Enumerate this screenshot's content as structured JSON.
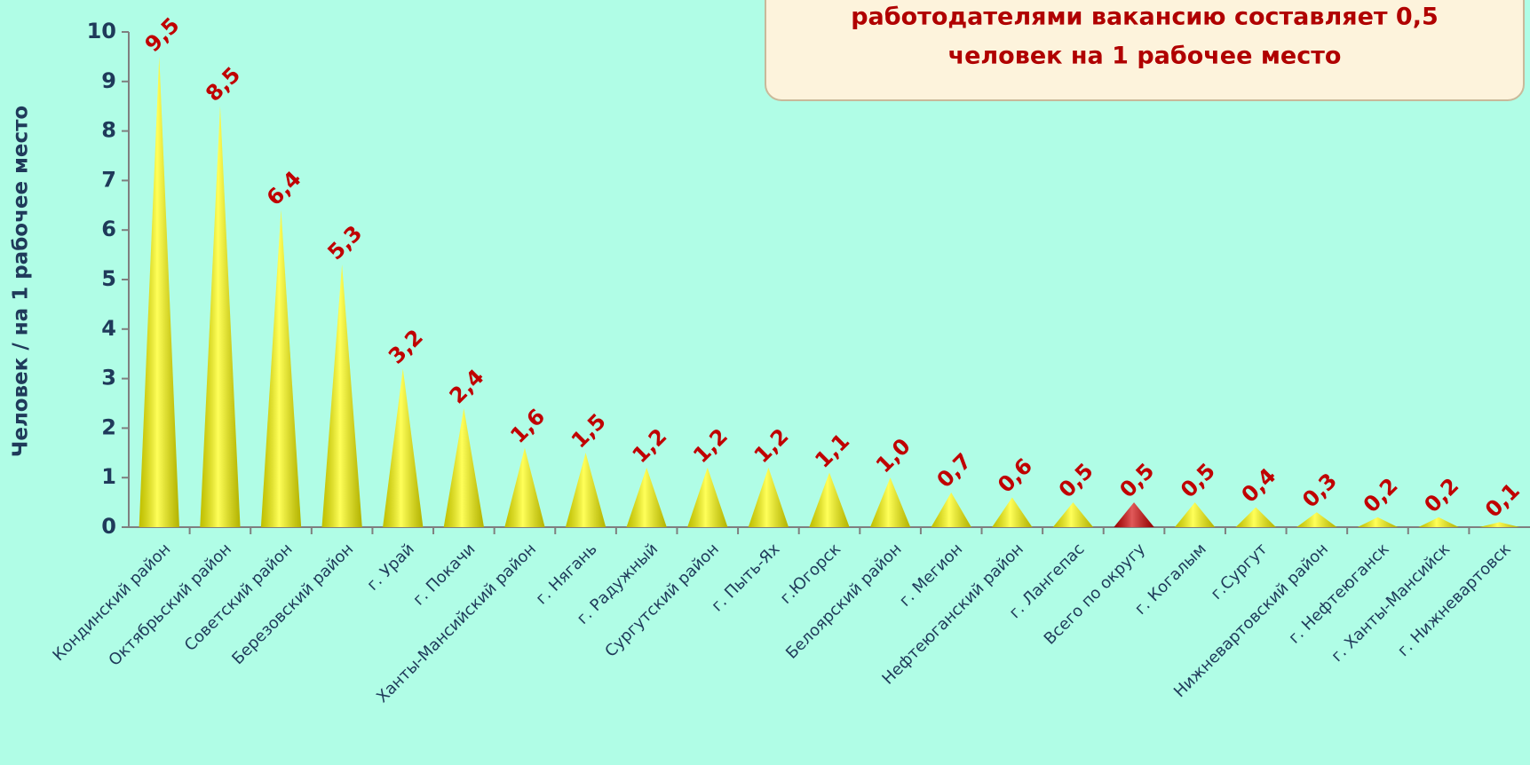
{
  "chart_data": {
    "type": "cone",
    "y_axis_label": "Человек / на 1 рабочее место",
    "annotation": [
      "работодателями вакансию составляет 0,5",
      "человек на 1 рабочее место"
    ],
    "categories": [
      "Кондинский район",
      "Октябрьский район",
      "Советский район",
      "Березовский район",
      "г. Урай",
      "г. Покачи",
      "Ханты-Мансийский район",
      "г. Нягань",
      "г. Радужный",
      "Сургутский район",
      "г. Пыть-Ях",
      "г.Югорск",
      "Белоярский район",
      "г. Мегион",
      "Нефтеюганский район",
      "г. Лангепас",
      "Всего по округу",
      "г. Когалым",
      "г.Сургут",
      "Нижневартовский район",
      "г. Нефтеюганск",
      "г. Ханты-Мансийск",
      "г. Нижневартовск"
    ],
    "values": [
      9.5,
      8.5,
      6.4,
      5.3,
      3.2,
      2.4,
      1.6,
      1.5,
      1.2,
      1.2,
      1.2,
      1.1,
      1.0,
      0.7,
      0.6,
      0.5,
      0.5,
      0.5,
      0.4,
      0.3,
      0.2,
      0.2,
      0.1
    ],
    "value_labels": [
      "9,5",
      "8,5",
      "6,4",
      "5,3",
      "3,2",
      "2,4",
      "1,6",
      "1,5",
      "1,2",
      "1,2",
      "1,2",
      "1,1",
      "1,0",
      "0,7",
      "0,6",
      "0,5",
      "0,5",
      "0,5",
      "0,4",
      "0,3",
      "0,2",
      "0,2",
      "0,1"
    ],
    "colors": [
      "#ffff00",
      "#ffff00",
      "#ffff00",
      "#ffff00",
      "#ffff00",
      "#ffff00",
      "#ffff00",
      "#ffff00",
      "#ffff00",
      "#ffff00",
      "#ffff00",
      "#ffff00",
      "#ffff00",
      "#ffff00",
      "#ffff00",
      "#ffff00",
      "#d00000",
      "#ffff00",
      "#ffff00",
      "#ffff00",
      "#ffff00",
      "#ffff00",
      "#ffff00"
    ],
    "ylim": [
      0,
      10
    ],
    "yticks": [
      0,
      1,
      2,
      3,
      4,
      5,
      6,
      7,
      8,
      9,
      10
    ]
  }
}
